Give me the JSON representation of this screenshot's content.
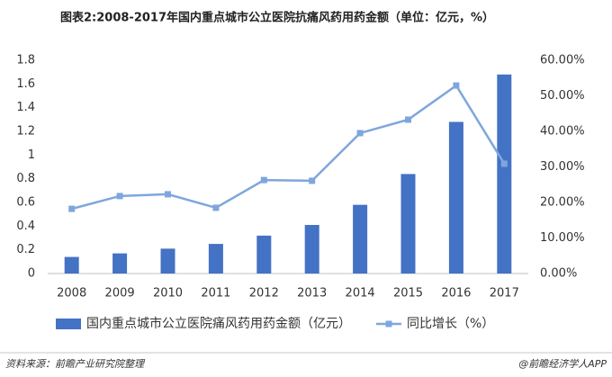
{
  "chart_data": {
    "type": "bar",
    "title": "图表2:2008-2017年国内重点城市公立医院抗痛风药用药金额（单位：亿元，%）",
    "categories": [
      "2008",
      "2009",
      "2010",
      "2011",
      "2012",
      "2013",
      "2014",
      "2015",
      "2016",
      "2017"
    ],
    "series": [
      {
        "name": "国内重点城市公立医院痛风药用药金额（亿元）",
        "type": "bar",
        "color": "#4472c4",
        "values": [
          0.14,
          0.17,
          0.21,
          0.25,
          0.32,
          0.41,
          0.58,
          0.84,
          1.28,
          1.68
        ]
      },
      {
        "name": "同比增长（%）",
        "type": "line",
        "axis": "y2",
        "color": "#7fa6dc",
        "values": [
          18.2,
          21.8,
          22.3,
          18.5,
          26.3,
          26.1,
          39.5,
          43.3,
          52.9,
          30.9
        ]
      }
    ],
    "ylim": [
      0,
      1.8
    ],
    "yticks": [
      0,
      0.2,
      0.4,
      0.6,
      0.8,
      1,
      1.2,
      1.4,
      1.6,
      1.8
    ],
    "y2lim": [
      0,
      60
    ],
    "y2ticks": [
      {
        "value": 0,
        "label": "0.00%"
      },
      {
        "value": 10,
        "label": "10.00%"
      },
      {
        "value": 20,
        "label": "20.00%"
      },
      {
        "value": 30,
        "label": "30.00%"
      },
      {
        "value": 40,
        "label": "40.00%"
      },
      {
        "value": 50,
        "label": "50.00%"
      },
      {
        "value": 60,
        "label": "60.00%"
      }
    ],
    "grid": false,
    "legend": "bottom",
    "source": "资料来源：前瞻产业研究院整理",
    "credit": "@前瞻经济学人APP"
  }
}
